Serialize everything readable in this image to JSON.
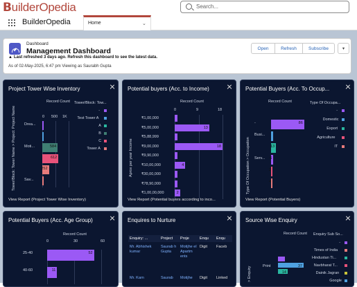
{
  "brand": {
    "logo_text": "uilderOpedia"
  },
  "search": {
    "placeholder": "Search..."
  },
  "app": {
    "name": "BuilderOpedia",
    "tab_label": "Home"
  },
  "header": {
    "subtitle": "Dashboard",
    "title": "Management Dashboard",
    "warning": "Last refreshed 3 days ago. Refresh this dashboard to see the latest data.",
    "as_of": "As of 02-May-2025, 6:47 pm Viewing as Saurabh Gupta",
    "buttons": {
      "open": "Open",
      "refresh": "Refresh",
      "subscribe": "Subscribe"
    }
  },
  "panels": {
    "tower": {
      "title": "Project Tower Wise Inventory",
      "footer": "View Report (Project Tower Wise Inventory)",
      "measure": "Record Count",
      "ticks": [
        "0",
        "500",
        "1K"
      ],
      "legend_title": "Tower/Block: Tow...",
      "legend": [
        {
          "label": "-",
          "color": "#9b59f5"
        },
        {
          "label": "Test Tower A",
          "color": "#4fa1e0"
        },
        {
          "label": "A",
          "color": "#2ab7a0"
        },
        {
          "label": "B",
          "color": "#3f7f73"
        },
        {
          "label": "C",
          "color": "#e8537a"
        },
        {
          "label": "Tower A",
          "color": "#e67b7b"
        }
      ],
      "y_axis": "Tower/Block: Tower Name > Project: Project Name",
      "rows": [
        {
          "label": "Drea...",
          "color": "#9b59f5",
          "value": 10,
          "text": ""
        },
        {
          "label": "",
          "color": "#4fa1e0",
          "value": 10,
          "text": ""
        },
        {
          "label": "Moti...",
          "color": "#3f7f73",
          "value": 584,
          "text": "584"
        },
        {
          "label": "",
          "color": "#e8537a",
          "value": 612,
          "text": "612"
        },
        {
          "label": "",
          "color": "#e67b7b",
          "value": 252,
          "text": "252"
        },
        {
          "label": "Sav...",
          "color": "#e67b7b",
          "value": 10,
          "text": ""
        }
      ]
    },
    "income": {
      "title": "Potential buyers (Acc. to Income)",
      "footer": "View Report (Potential buyers according to inco...",
      "measure": "Record Count",
      "ticks": [
        "0",
        "9",
        "18"
      ],
      "y_axis": "Aprox per year Income",
      "rows": [
        {
          "label": "₹1,00,000",
          "value": 1,
          "text": ""
        },
        {
          "label": "₹5,00,000",
          "value": 13,
          "text": "13"
        },
        {
          "label": "₹5,88,999",
          "value": 1,
          "text": ""
        },
        {
          "label": "₹9,00,000",
          "value": 18,
          "text": "18"
        },
        {
          "label": "₹9,90,000",
          "value": 1,
          "text": ""
        },
        {
          "label": "₹10,00,000",
          "value": 4,
          "text": "4"
        },
        {
          "label": "₹30,00,000",
          "value": 1,
          "text": ""
        },
        {
          "label": "₹78,90,000",
          "value": 1,
          "text": ""
        },
        {
          "label": "₹1,00,00,000",
          "value": 2,
          "text": "2"
        }
      ]
    },
    "occupation": {
      "title": "Potential Buyers (Acc. To Occup...",
      "footer": "View Report (Potential Buyers)",
      "measure": "Record Count",
      "legend_title": "Type Of Occupa...",
      "legend": [
        {
          "label": "-",
          "color": "#9b59f5"
        },
        {
          "label": "Domestic",
          "color": "#4fa1e0"
        },
        {
          "label": "Export",
          "color": "#2ab7a0"
        },
        {
          "label": "Agriculture",
          "color": "#e8537a"
        },
        {
          "label": "IT",
          "color": "#e67b7b"
        }
      ],
      "y_axis": "Type Of Occupation > Occupation",
      "rows": [
        {
          "label": "-",
          "color": "#9b59f5",
          "value": 86,
          "text": "86"
        },
        {
          "label": "Busi...",
          "color": "#4fa1e0",
          "value": 5,
          "text": ""
        },
        {
          "label": "",
          "color": "#2ab7a0",
          "value": 13,
          "text": "13"
        },
        {
          "label": "Serv...",
          "color": "#9b59f5",
          "value": 6,
          "text": "6"
        },
        {
          "label": "",
          "color": "#e8537a",
          "value": 2,
          "text": "2"
        },
        {
          "label": "",
          "color": "#e67b7b",
          "value": 4,
          "text": "4"
        }
      ]
    },
    "age": {
      "title": "Potential Buyers (Acc. Age Group)",
      "measure": "Record Count",
      "ticks": [
        "0",
        "30",
        "60"
      ],
      "rows": [
        {
          "label": "25-40",
          "value": 52,
          "text": "52"
        },
        {
          "label": "40-60",
          "value": 11,
          "text": "11"
        }
      ]
    },
    "nurture": {
      "title": "Enquires to Nurture",
      "columns": [
        "Enquiry: ...",
        "Project",
        "Proje",
        "Enqu",
        "Enqu"
      ],
      "rows": [
        [
          "Mr. Abhishek kumar",
          "Saurab h Gupta",
          "Motijhe el Apartm ents",
          "Digit",
          "Faceb"
        ],
        [
          "Mr. Karn",
          "Saurab",
          "Motijhe",
          "Digit",
          "Linked"
        ]
      ]
    },
    "source": {
      "title": "Source Wise Enquiry",
      "measure": "Record Count",
      "legend_title": "Enquiry Sub So...",
      "legend": [
        {
          "label": "-",
          "color": "#9b59f5"
        },
        {
          "label": "Times of India",
          "color": "#e67b7b"
        },
        {
          "label": "Hindustan Ti...",
          "color": "#2ab7a0"
        },
        {
          "label": "Navbharat T...",
          "color": "#e8537a"
        },
        {
          "label": "Dainik Jagran",
          "color": "#c9c43a"
        },
        {
          "label": "Google",
          "color": "#4fa1e0"
        }
      ],
      "y_axis": "> Enquiry",
      "rows": [
        {
          "label": "",
          "color": "#9b59f5",
          "value": 10,
          "text": ""
        },
        {
          "label": "Print",
          "color": "#4fa1e0",
          "value": 37,
          "text": "37"
        },
        {
          "label": "",
          "color": "#2ab7a0",
          "value": 14,
          "text": "14"
        }
      ]
    }
  }
}
